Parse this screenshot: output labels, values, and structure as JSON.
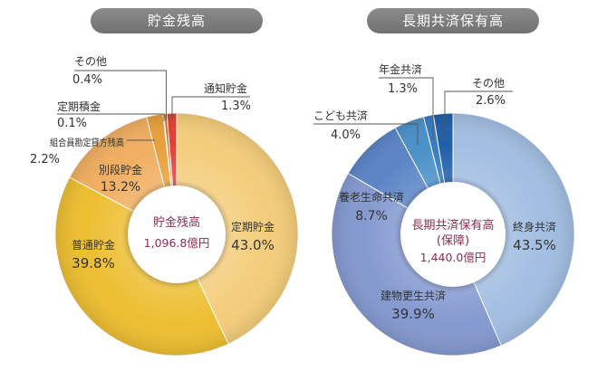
{
  "chart_data": [
    {
      "type": "pie",
      "title": "貯金残高",
      "center_title": "貯金残高",
      "center_value": "1,096.8億円",
      "slices": [
        {
          "label": "定期貯金",
          "value": 43.0,
          "value_label": "43.0%",
          "color": "#f4cd7b"
        },
        {
          "label": "普通貯金",
          "value": 39.8,
          "value_label": "39.8%",
          "color": "#edbe31"
        },
        {
          "label": "別段貯金",
          "value": 13.2,
          "value_label": "13.2%",
          "color": "#f0ae60"
        },
        {
          "label": "組合員勘定貸方残高",
          "value": 2.2,
          "value_label": "2.2%",
          "color": "#e79f3a"
        },
        {
          "label": "定期積金",
          "value": 0.1,
          "value_label": "0.1%",
          "color": "#e5862f"
        },
        {
          "label": "その他",
          "value": 0.4,
          "value_label": "0.4%",
          "color": "#dd6a2a"
        },
        {
          "label": "通知貯金",
          "value": 1.3,
          "value_label": "1.3%",
          "color": "#e0412f"
        }
      ]
    },
    {
      "type": "pie",
      "title": "長期共済保有高",
      "center_title": "長期共済保有高",
      "center_subtitle": "(保障)",
      "center_value": "1,440.0億円",
      "slices": [
        {
          "label": "終身共済",
          "value": 43.5,
          "value_label": "43.5%",
          "color": "#a2bee2"
        },
        {
          "label": "建物更生共済",
          "value": 39.9,
          "value_label": "39.9%",
          "color": "#8499d0"
        },
        {
          "label": "養老生命共済",
          "value": 8.7,
          "value_label": "8.7%",
          "color": "#5b85c6"
        },
        {
          "label": "こども共済",
          "value": 4.0,
          "value_label": "4.0%",
          "color": "#4a90c9"
        },
        {
          "label": "年金共済",
          "value": 1.3,
          "value_label": "1.3%",
          "color": "#357cc0"
        },
        {
          "label": "その他",
          "value": 2.6,
          "value_label": "2.6%",
          "color": "#1f5ea8"
        }
      ]
    }
  ],
  "colors": {
    "header_pill": "#7b7b7b",
    "header_text": "#ffffff",
    "center_text": "#8b2c55",
    "label_text": "#333333",
    "leader_line": "#555555",
    "slice_separator": "#ffffff",
    "background": "#ffffff"
  }
}
